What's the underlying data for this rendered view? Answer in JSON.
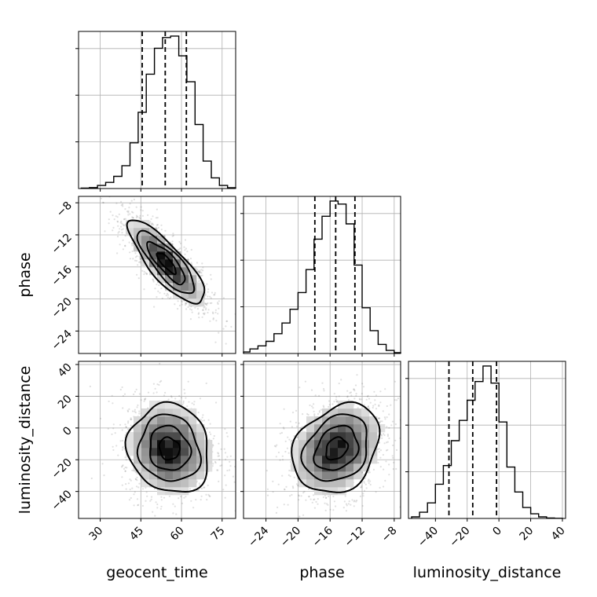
{
  "chart_data": {
    "type": "corner",
    "parameters": [
      {
        "name": "geocent_time",
        "xlabel": "geocent_time",
        "range": [
          22,
          80
        ],
        "ticks": [
          30,
          45,
          60,
          75
        ],
        "quantiles": [
          45.5,
          54.0,
          61.8
        ],
        "hist_edges": [
          23,
          26,
          29,
          32,
          35,
          38,
          41,
          44,
          47,
          50,
          53,
          56,
          59,
          62,
          65,
          68,
          71,
          74,
          77,
          80
        ],
        "hist_counts": [
          0.003,
          0.006,
          0.02,
          0.04,
          0.08,
          0.15,
          0.3,
          0.5,
          0.75,
          0.92,
          0.99,
          1.0,
          0.87,
          0.7,
          0.42,
          0.18,
          0.07,
          0.02,
          0.005
        ]
      },
      {
        "name": "phase",
        "xlabel": "phase",
        "ylabel": "phase",
        "range": [
          -26.8,
          -7.2
        ],
        "ticks": [
          -24,
          -20,
          -16,
          -12,
          -8
        ],
        "quantiles": [
          -17.9,
          -15.3,
          -12.9
        ],
        "hist_edges": [
          -26.8,
          -26,
          -25,
          -24,
          -23,
          -22,
          -21,
          -20,
          -19,
          -18,
          -17,
          -16,
          -15,
          -14,
          -13,
          -12,
          -11,
          -10,
          -9,
          -8,
          -7.2
        ],
        "hist_counts": [
          0.01,
          0.03,
          0.05,
          0.08,
          0.13,
          0.2,
          0.29,
          0.4,
          0.55,
          0.75,
          0.9,
          1.0,
          0.98,
          0.85,
          0.58,
          0.3,
          0.15,
          0.06,
          0.02,
          0.005
        ]
      },
      {
        "name": "luminosity_distance",
        "xlabel": "luminosity_distance",
        "ylabel": "luminosity_distance",
        "range": [
          -57,
          42
        ],
        "ticks": [
          -40,
          -20,
          0,
          20,
          40
        ],
        "quantiles": [
          -31.5,
          -16.5,
          -1.5
        ],
        "hist_edges": [
          -55,
          -50,
          -45,
          -40,
          -35,
          -30,
          -25,
          -20,
          -15,
          -10,
          -5,
          0,
          5,
          10,
          15,
          20,
          25,
          30,
          35,
          40
        ],
        "hist_counts": [
          0.01,
          0.04,
          0.1,
          0.22,
          0.34,
          0.5,
          0.63,
          0.76,
          0.88,
          0.98,
          0.87,
          0.62,
          0.33,
          0.17,
          0.07,
          0.03,
          0.01,
          0.003,
          0.001
        ]
      }
    ],
    "pairs": [
      {
        "x": "geocent_time",
        "y": "phase",
        "center": [
          54.5,
          -15.5
        ],
        "sigma": [
          7.0,
          2.6
        ],
        "correlation": -0.82
      },
      {
        "x": "geocent_time",
        "y": "luminosity_distance",
        "center": [
          55.5,
          -13.0
        ],
        "sigma": [
          7.5,
          14.0
        ],
        "correlation": -0.1
      },
      {
        "x": "phase",
        "y": "luminosity_distance",
        "center": [
          -15.2,
          -13.0
        ],
        "sigma": [
          2.7,
          14.0
        ],
        "correlation": 0.25
      }
    ],
    "contour_levels": [
      0.5,
      1.0,
      1.5,
      2.0
    ],
    "grid": true
  }
}
